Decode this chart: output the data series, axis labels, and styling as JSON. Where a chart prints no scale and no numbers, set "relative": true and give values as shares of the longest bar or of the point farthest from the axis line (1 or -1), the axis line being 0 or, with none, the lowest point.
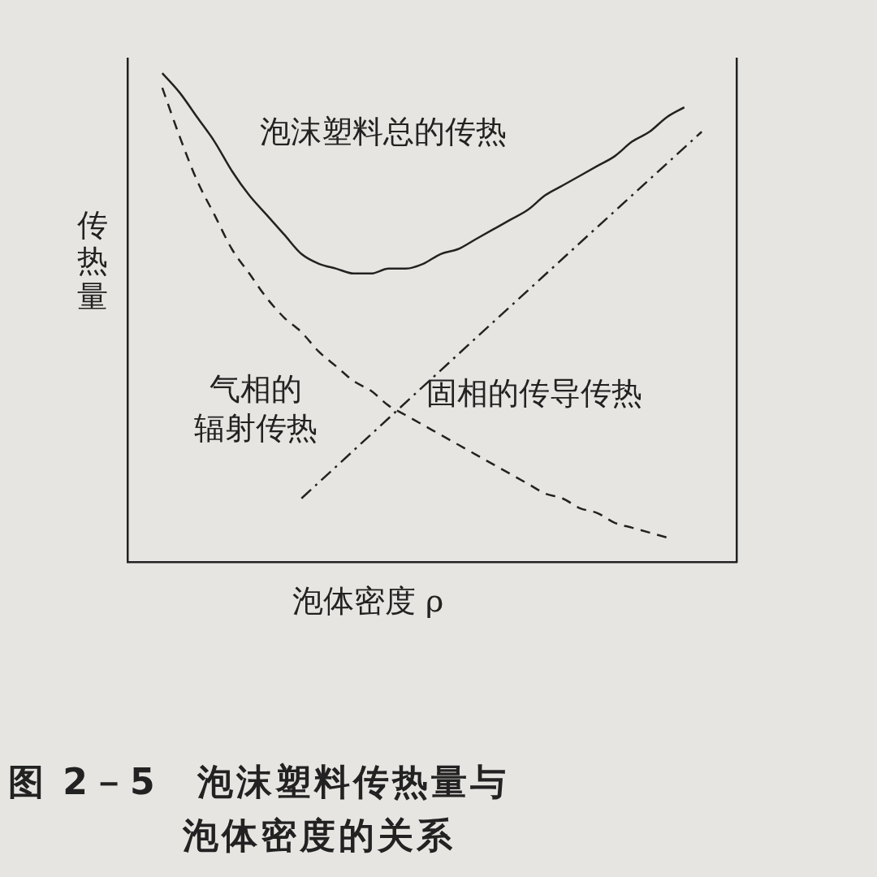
{
  "chart_data": {
    "type": "line",
    "title": "图 2－5　泡沫塑料传热量与泡体密度的关系",
    "xlabel": "泡体密度 ρ",
    "ylabel": "传热量",
    "relative": true,
    "legend": false,
    "grid": false,
    "tick_labels": false,
    "marker": "none",
    "categories": [
      null,
      null,
      null,
      null,
      null,
      null,
      null,
      null,
      null,
      null,
      null,
      null,
      null,
      null,
      null,
      null,
      null,
      null,
      null,
      null,
      null,
      null,
      null,
      null,
      null,
      null,
      null,
      null,
      null,
      null,
      null,
      null,
      null,
      null,
      null,
      null
    ],
    "series": [
      {
        "name": "泡沫塑料总的传热",
        "color": "#222222",
        "line_style": "solid",
        "values": [
          null,
          null,
          1.0,
          0.96,
          0.91,
          0.86,
          0.8,
          0.75,
          0.71,
          0.67,
          0.63,
          0.61,
          0.6,
          0.59,
          0.59,
          0.6,
          0.6,
          0.61,
          0.63,
          0.64,
          0.66,
          0.68,
          0.7,
          0.72,
          0.75,
          0.77,
          0.79,
          0.81,
          0.83,
          0.86,
          0.88,
          0.91,
          0.93,
          null,
          null,
          null
        ]
      },
      {
        "name": "气相的辐射传热",
        "color": "#222222",
        "line_style": "dashed",
        "values": [
          null,
          null,
          0.97,
          0.87,
          0.78,
          0.71,
          0.64,
          0.59,
          0.54,
          0.5,
          0.47,
          0.43,
          0.4,
          0.37,
          0.35,
          0.32,
          0.3,
          0.28,
          0.26,
          0.24,
          0.22,
          0.2,
          0.18,
          0.16,
          0.14,
          0.13,
          0.11,
          0.1,
          0.08,
          0.07,
          0.06,
          0.05,
          null,
          null,
          null,
          null
        ]
      },
      {
        "name": "固相的传导传热",
        "color": "#222222",
        "line_style": "dashdot",
        "values": [
          null,
          null,
          null,
          null,
          null,
          null,
          null,
          null,
          null,
          null,
          0.13,
          null,
          null,
          null,
          null,
          null,
          null,
          null,
          null,
          null,
          null,
          0.49,
          null,
          null,
          null,
          null,
          null,
          null,
          null,
          null,
          null,
          null,
          null,
          0.88,
          null,
          null
        ]
      }
    ]
  }
}
